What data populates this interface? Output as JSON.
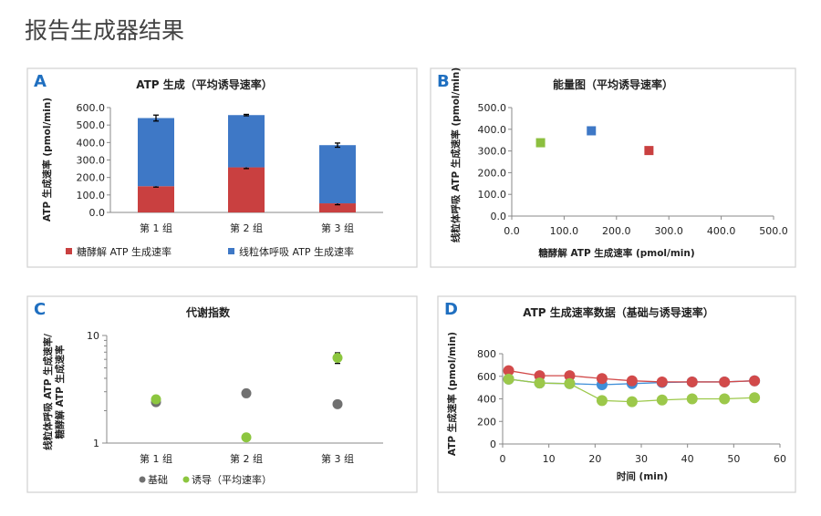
{
  "page_title": "报告生成器结果",
  "chart_data": [
    {
      "panel": "A",
      "type": "bar",
      "stacked": true,
      "title": "ATP 生成（平均诱导速率）",
      "ylabel": "ATP 生成速率 (pmol/min)",
      "xlabel": "",
      "ylim": [
        0,
        600
      ],
      "yticks": [
        "0.0",
        "100.0",
        "200.0",
        "300.0",
        "400.0",
        "500.0",
        "600.0"
      ],
      "categories": [
        "第 1 组",
        "第 2 组",
        "第 3 组"
      ],
      "series": [
        {
          "name": "糖酵解 ATP 生成速率",
          "color": "#c94040",
          "values": [
            150,
            258,
            52
          ],
          "errors": [
            5,
            7,
            8
          ]
        },
        {
          "name": "线粒体呼吸 ATP 生成速率",
          "color": "#3e78c6",
          "values": [
            390,
            299,
            333
          ],
          "errors": [
            17,
            4,
            12
          ]
        }
      ],
      "legend": "bottom"
    },
    {
      "panel": "B",
      "type": "scatter",
      "title": "能量图（平均诱导速率）",
      "xlabel": "糖酵解 ATP 生成速率 (pmol/min)",
      "ylabel": "线粒体呼吸 ATP 生成速率 (pmol/min)",
      "xlim": [
        0,
        500
      ],
      "ylim": [
        0,
        500
      ],
      "xticks": [
        "0.0",
        "100.0",
        "200.0",
        "300.0",
        "400.0",
        "500.0"
      ],
      "yticks": [
        "0.0",
        "100.0",
        "200.0",
        "300.0",
        "400.0",
        "500.0"
      ],
      "points": [
        {
          "x": 55,
          "y": 338,
          "color": "#8cbf3f"
        },
        {
          "x": 152,
          "y": 393,
          "color": "#3e78c6"
        },
        {
          "x": 262,
          "y": 302,
          "color": "#c94040"
        }
      ]
    },
    {
      "panel": "C",
      "type": "scatter",
      "title": "代谢指数",
      "ylabel": "线粒体呼吸 ATP 生成速率/ 糖酵解 ATP 生成速率",
      "ylabel_lines": [
        "线粒体呼吸 ATP 生成速率/",
        "糖酵解 ATP 生成速率"
      ],
      "yscale": "log",
      "ylim": [
        1,
        10
      ],
      "yticks": [
        "1",
        "10"
      ],
      "categories": [
        "第 1 组",
        "第 2 组",
        "第 3 组"
      ],
      "series": [
        {
          "name": "基础",
          "color": "#707070",
          "values": [
            2.4,
            2.9,
            2.3
          ]
        },
        {
          "name": "诱导（平均速率）",
          "color": "#8cc63f",
          "values": [
            2.55,
            1.13,
            6.2
          ],
          "errors": [
            0,
            0,
            0.7
          ]
        }
      ],
      "legend": "bottom"
    },
    {
      "panel": "D",
      "type": "line",
      "title": "ATP 生成速率数据（基础与诱导速率）",
      "xlabel": "时间 (min)",
      "ylabel": "ATP 生成速率 (pmol/min)",
      "xlim": [
        0,
        60
      ],
      "ylim": [
        0,
        800
      ],
      "xticks": [
        "0",
        "10",
        "20",
        "30",
        "40",
        "50",
        "60"
      ],
      "yticks": [
        "0",
        "200",
        "400",
        "600",
        "800"
      ],
      "x": [
        1.3,
        8,
        14.5,
        21.5,
        28,
        34.5,
        41,
        48,
        54.5
      ],
      "series": [
        {
          "color": "#3e8ed8",
          "values": [
            575,
            540,
            535,
            525,
            535,
            545,
            550,
            550,
            560
          ]
        },
        {
          "color": "#d24a4a",
          "values": [
            650,
            605,
            605,
            580,
            560,
            550,
            550,
            550,
            560
          ]
        },
        {
          "color": "#9cc84a",
          "values": [
            575,
            540,
            535,
            385,
            375,
            390,
            400,
            400,
            410
          ]
        }
      ]
    }
  ]
}
